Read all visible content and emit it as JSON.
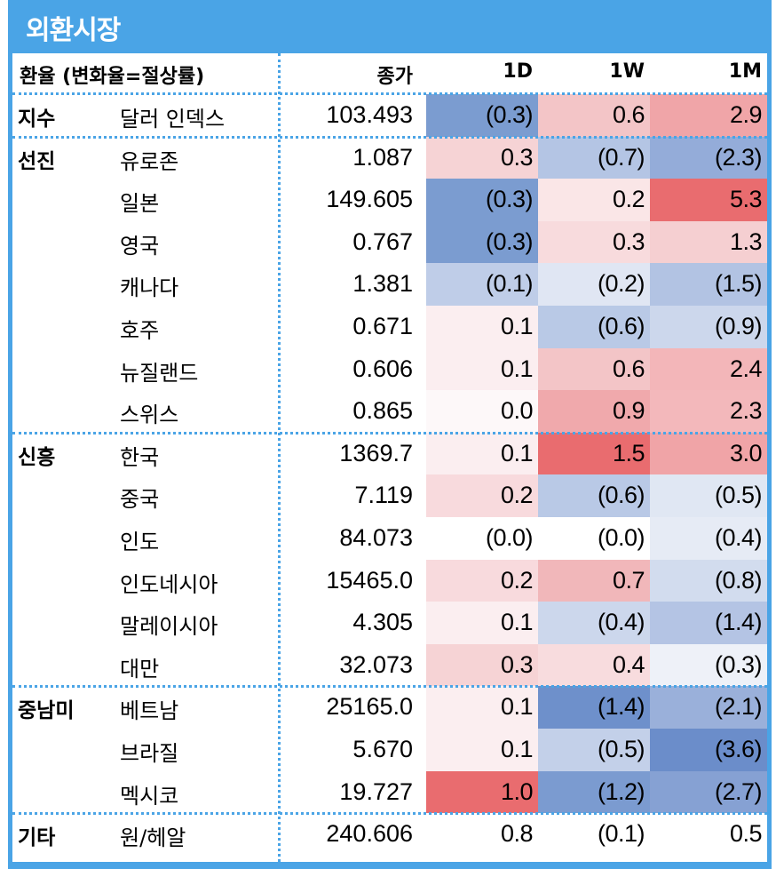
{
  "title": "외환시장",
  "header": {
    "col0": "환율 (변화율=절상률)",
    "close": "종가",
    "d1": "1D",
    "w1": "1W",
    "m1": "1M"
  },
  "rows": [
    {
      "group": "지수",
      "name": "달러 인덱스",
      "close": "103.493",
      "d1": "(0.3)",
      "w1": "0.6",
      "m1": "2.9",
      "bg": [
        "#7b9cd0",
        "#f3c5c7",
        "#f0a5a8"
      ]
    },
    {
      "group": "선진",
      "name": "유로존",
      "close": "1.087",
      "d1": "0.3",
      "w1": "(0.7)",
      "m1": "(2.3)",
      "bg": [
        "#f6d3d5",
        "#b4c5e4",
        "#94acd9"
      ]
    },
    {
      "group": "",
      "name": "일본",
      "close": "149.605",
      "d1": "(0.3)",
      "w1": "0.2",
      "m1": "5.3",
      "bg": [
        "#7b9cd0",
        "#fae6e7",
        "#e96c6f"
      ]
    },
    {
      "group": "",
      "name": "영국",
      "close": "0.767",
      "d1": "(0.3)",
      "w1": "0.3",
      "m1": "1.3",
      "bg": [
        "#7b9cd0",
        "#f8dbdd",
        "#f5cfd1"
      ]
    },
    {
      "group": "",
      "name": "캐나다",
      "close": "1.381",
      "d1": "(0.1)",
      "w1": "(0.2)",
      "m1": "(1.5)",
      "bg": [
        "#bfcde8",
        "#e0e6f3",
        "#b2c3e3"
      ]
    },
    {
      "group": "",
      "name": "호주",
      "close": "0.671",
      "d1": "0.1",
      "w1": "(0.6)",
      "m1": "(0.9)",
      "bg": [
        "#fbeef0",
        "#b9c9e6",
        "#ccd7ec"
      ]
    },
    {
      "group": "",
      "name": "뉴질랜드",
      "close": "0.606",
      "d1": "0.1",
      "w1": "0.6",
      "m1": "2.4",
      "bg": [
        "#fbeef0",
        "#f3c5c7",
        "#f3b6b9"
      ]
    },
    {
      "group": "",
      "name": "스위스",
      "close": "0.865",
      "d1": "0.0",
      "w1": "0.9",
      "m1": "2.3",
      "bg": [
        "#fdf8f9",
        "#f0a9ac",
        "#f3b8bb"
      ]
    },
    {
      "group": "신흥",
      "name": "한국",
      "close": "1369.7",
      "d1": "0.1",
      "w1": "1.5",
      "m1": "3.0",
      "bg": [
        "#fbeef0",
        "#e96c6f",
        "#f0a4a7"
      ]
    },
    {
      "group": "",
      "name": "중국",
      "close": "7.119",
      "d1": "0.2",
      "w1": "(0.6)",
      "m1": "(0.5)",
      "bg": [
        "#f8dadd",
        "#b9c9e6",
        "#e0e7f3"
      ]
    },
    {
      "group": "",
      "name": "인도",
      "close": "84.073",
      "d1": "(0.0)",
      "w1": "(0.0)",
      "m1": "(0.4)",
      "bg": [
        "#ffffff",
        "#ffffff",
        "#e6ebf5"
      ]
    },
    {
      "group": "",
      "name": "인도네시아",
      "close": "15465.0",
      "d1": "0.2",
      "w1": "0.7",
      "m1": "(0.8)",
      "bg": [
        "#f8dadd",
        "#f1b7ba",
        "#d2dcee"
      ]
    },
    {
      "group": "",
      "name": "말레이시아",
      "close": "4.305",
      "d1": "0.1",
      "w1": "(0.4)",
      "m1": "(1.4)",
      "bg": [
        "#fbeef0",
        "#ccd7ec",
        "#b4c4e4"
      ]
    },
    {
      "group": "",
      "name": "대만",
      "close": "32.073",
      "d1": "0.3",
      "w1": "0.4",
      "m1": "(0.3)",
      "bg": [
        "#f6d3d5",
        "#f8dcde",
        "#eef1f8"
      ]
    },
    {
      "group": "중남미",
      "name": "베트남",
      "close": "25165.0",
      "d1": "0.1",
      "w1": "(1.4)",
      "m1": "(2.1)",
      "bg": [
        "#fbeef0",
        "#6e90cb",
        "#9ab0da"
      ]
    },
    {
      "group": "",
      "name": "브라질",
      "close": "5.670",
      "d1": "0.1",
      "w1": "(0.5)",
      "m1": "(3.6)",
      "bg": [
        "#fbeef0",
        "#c3d0e9",
        "#6b8dca"
      ]
    },
    {
      "group": "",
      "name": "멕시코",
      "close": "19.727",
      "d1": "1.0",
      "w1": "(1.2)",
      "m1": "(2.7)",
      "bg": [
        "#e96c6f",
        "#7b9bd0",
        "#86a1d3"
      ]
    },
    {
      "group": "기타",
      "name": "원/헤알",
      "close": "240.606",
      "d1": "0.8",
      "w1": "(0.1)",
      "m1": "0.5",
      "bg": [
        "#ffffff",
        "#ffffff",
        "#ffffff"
      ]
    }
  ]
}
